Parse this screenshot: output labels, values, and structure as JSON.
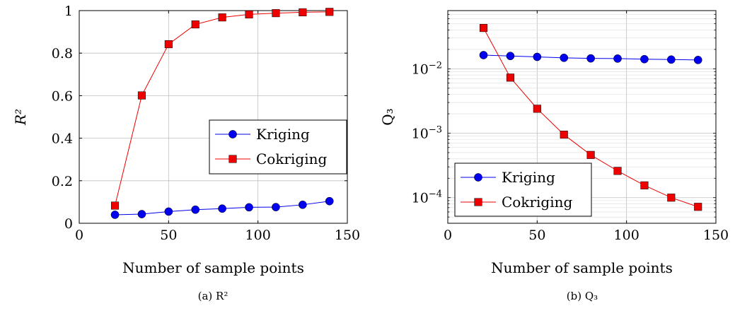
{
  "chart_data": [
    {
      "type": "line",
      "caption": "(a) R²",
      "xlabel": "Number of sample points",
      "ylabel": "R²",
      "xlim": [
        0,
        150
      ],
      "ylim": [
        0,
        1
      ],
      "yscale": "linear",
      "xticks": [
        0,
        50,
        100,
        150
      ],
      "yticks": [
        0,
        0.2,
        0.4,
        0.6,
        0.8,
        1
      ],
      "xtick_labels": [
        "0",
        "50",
        "100",
        "150"
      ],
      "ytick_labels": [
        "0",
        "0.2",
        "0.4",
        "0.6",
        "0.8",
        "1"
      ],
      "grid": "major",
      "legend_position": "center-right",
      "x": [
        20,
        35,
        50,
        65,
        80,
        95,
        110,
        125,
        140
      ],
      "series": [
        {
          "name": "Kriging",
          "color": "#0000ee",
          "marker": "circle",
          "values": [
            0.04,
            0.043,
            0.055,
            0.064,
            0.069,
            0.075,
            0.076,
            0.087,
            0.104
          ]
        },
        {
          "name": "Cokriging",
          "color": "#ee0000",
          "marker": "square",
          "values": [
            0.083,
            0.601,
            0.842,
            0.935,
            0.968,
            0.982,
            0.988,
            0.992,
            0.994
          ]
        }
      ]
    },
    {
      "type": "line",
      "caption": "(b) Q₃",
      "xlabel": "Number of sample points",
      "ylabel": "Q₃",
      "xlim": [
        0,
        150
      ],
      "ylim": [
        4e-05,
        0.08
      ],
      "yscale": "log",
      "xticks": [
        0,
        50,
        100,
        150
      ],
      "yticks": [
        0.01,
        0.001,
        0.0001
      ],
      "xtick_labels": [
        "0",
        "50",
        "100",
        "150"
      ],
      "ytick_labels": [
        {
          "base": "10",
          "exp": "−2"
        },
        {
          "base": "10",
          "exp": "−3"
        },
        {
          "base": "10",
          "exp": "−4"
        }
      ],
      "grid": "major-and-minor",
      "legend_position": "bottom-left",
      "x": [
        20,
        35,
        50,
        65,
        80,
        95,
        110,
        125,
        140
      ],
      "series": [
        {
          "name": "Kriging",
          "color": "#0000ee",
          "marker": "circle",
          "values": [
            0.0163,
            0.0158,
            0.0153,
            0.0148,
            0.0145,
            0.0144,
            0.0141,
            0.0139,
            0.0137
          ]
        },
        {
          "name": "Cokriging",
          "color": "#ee0000",
          "marker": "square",
          "values": [
            0.043,
            0.0073,
            0.0024,
            0.00095,
            0.00046,
            0.00026,
            0.000155,
            0.0001,
            7.2e-05
          ]
        }
      ]
    }
  ]
}
